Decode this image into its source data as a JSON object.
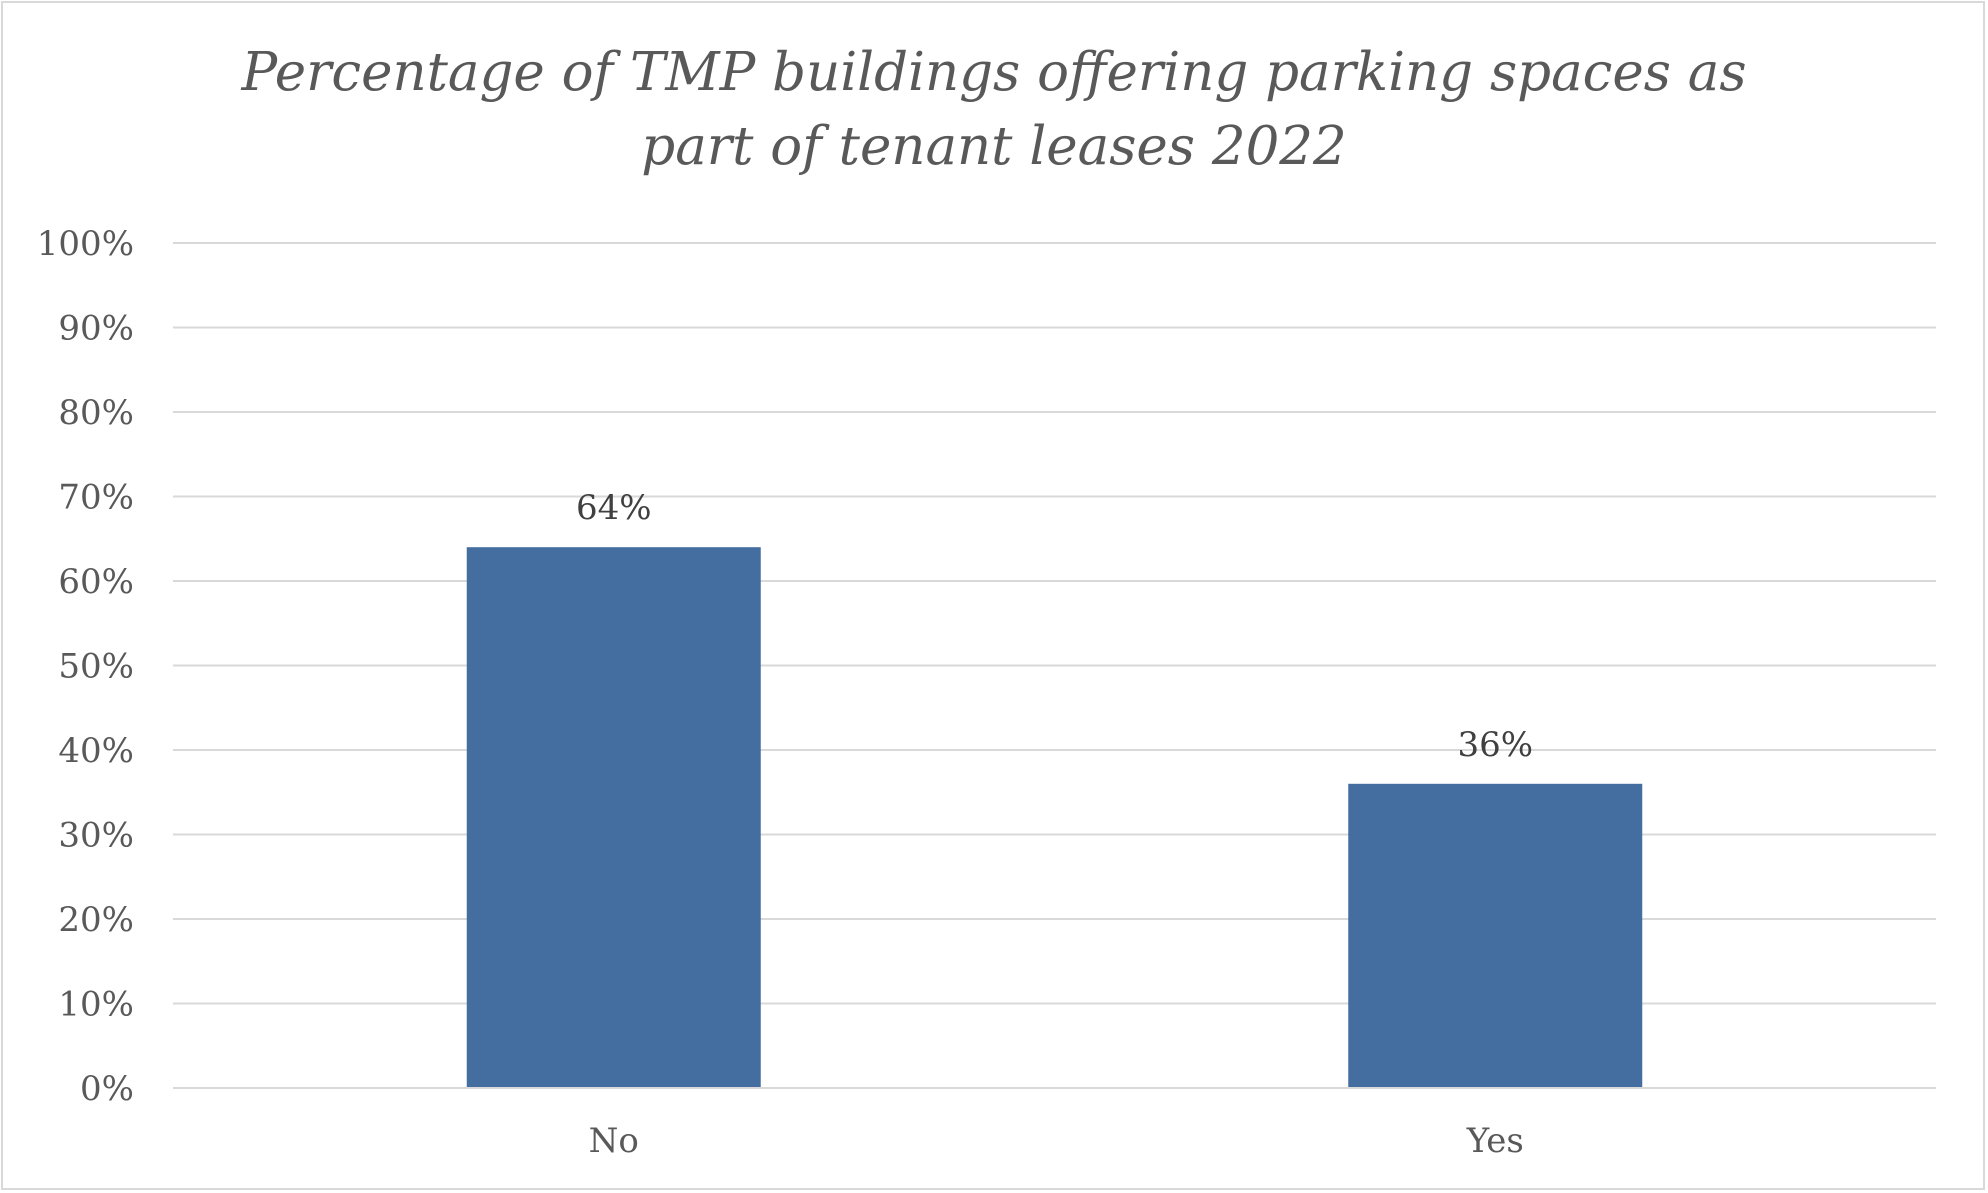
{
  "chart_data": {
    "type": "bar",
    "title_lines": [
      "Percentage of TMP buildings offering parking spaces as",
      "part of tenant leases 2022"
    ],
    "categories": [
      "No",
      "Yes"
    ],
    "values": [
      64,
      36
    ],
    "data_labels": [
      "64%",
      "36%"
    ],
    "ylim": [
      0,
      100
    ],
    "y_ticks": [
      0,
      10,
      20,
      30,
      40,
      50,
      60,
      70,
      80,
      90,
      100
    ],
    "y_tick_labels": [
      "0%",
      "10%",
      "20%",
      "30%",
      "40%",
      "50%",
      "60%",
      "70%",
      "80%",
      "90%",
      "100%"
    ],
    "grid": true,
    "legend": "none",
    "colors": {
      "bar": "#436e9f",
      "grid": "#d9d9d9",
      "axis": "#d9d9d9",
      "text": "#595959"
    }
  }
}
